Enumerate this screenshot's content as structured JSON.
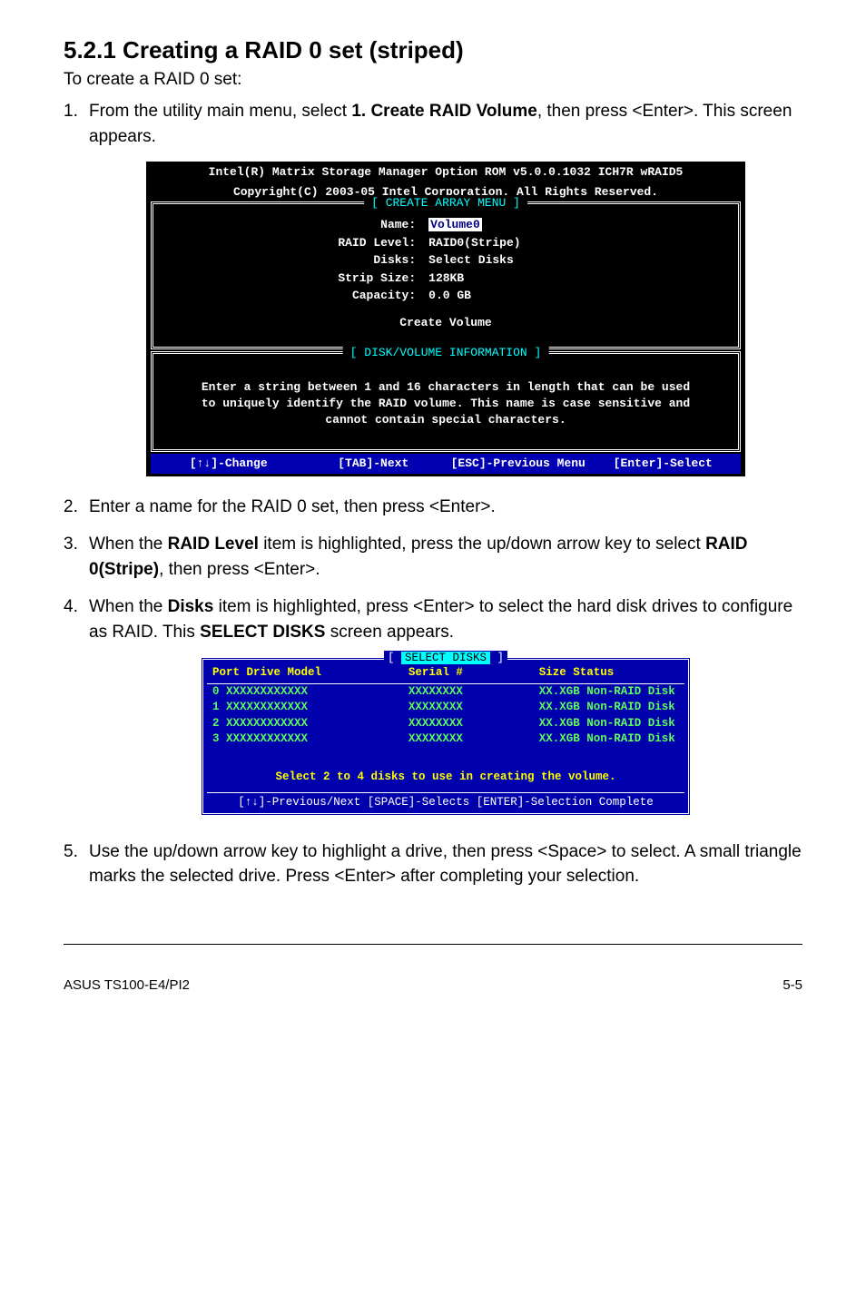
{
  "heading": "5.2.1 Creating a RAID 0 set (striped)",
  "subtitle": "To create a RAID 0 set:",
  "step1_num": "1.",
  "step1_pre": "From the utility main menu, select ",
  "step1_bold": "1. Create RAID Volume",
  "step1_post": ", then press <Enter>. This screen appears.",
  "term1": {
    "title1": "Intel(R) Matrix Storage Manager Option ROM v5.0.0.1032 ICH7R wRAID5",
    "title2": "Copyright(C) 2003-05 Intel Corporation. All Rights Reserved.",
    "box1_title": "[ CREATE ARRAY MENU ]",
    "fields": {
      "name_label": "Name:",
      "name_value": "Volume0",
      "raid_label": "RAID Level:",
      "raid_value": "RAID0(Stripe)",
      "disks_label": "Disks:",
      "disks_value": "Select Disks",
      "strip_label": "Strip Size:",
      "strip_value": "128KB",
      "cap_label": "Capacity:",
      "cap_value": "0.0   GB"
    },
    "action": "Create Volume",
    "box2_title": "[ DISK/VOLUME INFORMATION ]",
    "info_line1": "Enter a string between 1 and 16 characters in length that can be used",
    "info_line2": "to uniquely identify the RAID volume. This name is case sensitive and",
    "info_line3": "cannot contain special characters.",
    "nav1": "[↑↓]-Change",
    "nav2": "[TAB]-Next",
    "nav3": "[ESC]-Previous Menu",
    "nav4": "[Enter]-Select"
  },
  "step2_num": "2.",
  "step2": "Enter a name for the RAID 0 set, then press <Enter>.",
  "step3_num": "3.",
  "step3_a": "When the ",
  "step3_b": "RAID Level",
  "step3_c": " item is highlighted, press the up/down arrow key to select ",
  "step3_d": "RAID 0(Stripe)",
  "step3_e": ", then press <Enter>.",
  "step4_num": "4.",
  "step4_a": "When the ",
  "step4_b": "Disks",
  "step4_c": " item is highlighted, press <Enter> to select the hard disk drives to configure as RAID. This ",
  "step4_d": "SELECT DISKS",
  "step4_e": " screen appears.",
  "term2": {
    "title": "SELECT DISKS",
    "hdr_port": "Port Drive Model",
    "hdr_serial": "Serial #",
    "hdr_size": "Size Status",
    "rows": [
      {
        "port": "0 XXXXXXXXXXXX",
        "serial": "XXXXXXXX",
        "size": "XX.XGB Non-RAID Disk"
      },
      {
        "port": "1 XXXXXXXXXXXX",
        "serial": "XXXXXXXX",
        "size": "XX.XGB Non-RAID Disk"
      },
      {
        "port": "2 XXXXXXXXXXXX",
        "serial": "XXXXXXXX",
        "size": "XX.XGB Non-RAID Disk"
      },
      {
        "port": "3 XXXXXXXXXXXX",
        "serial": "XXXXXXXX",
        "size": "XX.XGB Non-RAID Disk"
      }
    ],
    "msg": "Select 2 to 4 disks to use in creating the volume.",
    "footer": "[↑↓]-Previous/Next  [SPACE]-Selects  [ENTER]-Selection Complete"
  },
  "step5_num": "5.",
  "step5": "Use the up/down arrow key to highlight a drive, then press <Space>  to select. A small triangle marks the selected drive. Press <Enter> after completing your selection.",
  "footer_left": "ASUS TS100-E4/PI2",
  "footer_right": "5-5"
}
